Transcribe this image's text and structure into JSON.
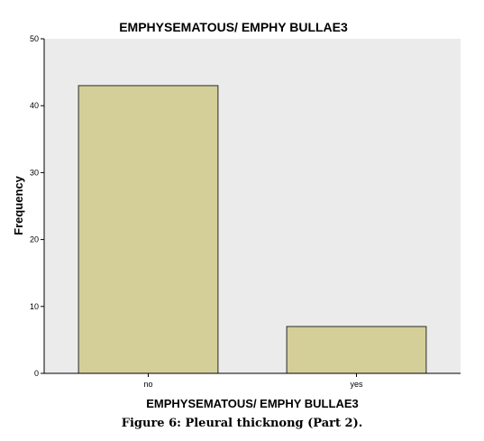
{
  "chart_data": {
    "type": "bar",
    "title": "EMPHYSEMATOUS/ EMPHY BULLAE3",
    "xlabel": "EMPHYSEMATOUS/ EMPHY BULLAE3",
    "ylabel": "Frequency",
    "categories": [
      "no",
      "yes"
    ],
    "values": [
      43,
      7
    ],
    "ylim": [
      0,
      50
    ],
    "yticks": [
      "0",
      "10",
      "20",
      "30",
      "40",
      "50"
    ],
    "grid": false,
    "legend": "none"
  },
  "colors": {
    "bar_fill": "#d4cf98",
    "bar_stroke": "#2a2a2a",
    "plot_background": "#ebebeb",
    "axis": "#000000"
  },
  "caption": "Figure 6: Pleural thicknong (Part 2)."
}
